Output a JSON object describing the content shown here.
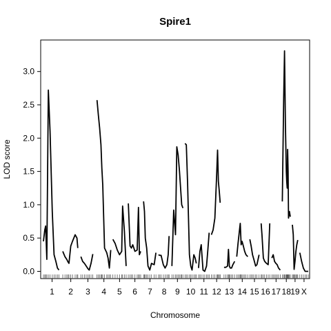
{
  "chart_data": {
    "type": "line",
    "title": "Spire1",
    "xlabel": "Chromosome",
    "ylabel": "LOD score",
    "ylim": [
      -0.1,
      3.45
    ],
    "yticks": [
      0.0,
      0.5,
      1.0,
      1.5,
      2.0,
      2.5,
      3.0
    ],
    "ytick_labels": [
      "0.0",
      "0.5",
      "1.0",
      "1.5",
      "2.0",
      "2.5",
      "3.0"
    ],
    "chromosomes": [
      {
        "label": "1",
        "length": 195
      },
      {
        "label": "2",
        "length": 181
      },
      {
        "label": "3",
        "length": 159
      },
      {
        "label": "4",
        "length": 156
      },
      {
        "label": "5",
        "length": 151
      },
      {
        "label": "6",
        "length": 149
      },
      {
        "label": "7",
        "length": 145
      },
      {
        "label": "8",
        "length": 129
      },
      {
        "label": "9",
        "length": 124
      },
      {
        "label": "10",
        "length": 130
      },
      {
        "label": "11",
        "length": 121
      },
      {
        "label": "12",
        "length": 120
      },
      {
        "label": "13",
        "length": 120
      },
      {
        "label": "14",
        "length": 125
      },
      {
        "label": "15",
        "length": 104
      },
      {
        "label": "16",
        "length": 98
      },
      {
        "label": "17",
        "length": 95
      },
      {
        "label": "18",
        "length": 90
      },
      {
        "label": "19",
        "length": 61
      },
      {
        "label": "X",
        "length": 95
      }
    ],
    "series": [
      {
        "chr": "1",
        "pos": [
          0,
          15,
          25,
          38,
          55,
          75,
          100,
          120,
          140,
          158,
          175
        ],
        "lod": [
          0.45,
          0.62,
          0.68,
          0.18,
          2.72,
          2.1,
          0.9,
          0.25,
          0.15,
          0.05,
          0.02
        ]
      },
      {
        "chr": "2",
        "pos": [
          0,
          25,
          45,
          60,
          70,
          90,
          110,
          140,
          160,
          170
        ],
        "lod": [
          0.3,
          0.22,
          0.18,
          0.14,
          0.12,
          0.38,
          0.45,
          0.55,
          0.5,
          0.35
        ]
      },
      {
        "chr": "3",
        "pos": [
          0,
          20,
          40,
          60,
          80,
          95,
          115,
          135
        ],
        "lod": [
          0.22,
          0.15,
          0.12,
          0.08,
          0.04,
          0.02,
          0.12,
          0.26
        ]
      },
      {
        "chr": "4",
        "pos": [
          0,
          15,
          30,
          45,
          55,
          65,
          85,
          110,
          125,
          140,
          155
        ],
        "lod": [
          2.57,
          2.35,
          2.15,
          1.9,
          1.55,
          1.3,
          0.35,
          0.28,
          0.2,
          0.05,
          0.32
        ]
      },
      {
        "chr": "5",
        "pos": [
          0,
          25,
          50,
          75,
          100,
          110,
          130,
          150
        ],
        "lod": [
          0.48,
          0.42,
          0.32,
          0.25,
          0.3,
          0.98,
          0.6,
          0.08
        ]
      },
      {
        "chr": "6",
        "pos": [
          0,
          20,
          35,
          50,
          75,
          100,
          115,
          125,
          140
        ],
        "lod": [
          1.02,
          0.38,
          0.35,
          0.4,
          0.3,
          0.32,
          0.96,
          0.25,
          0.3
        ]
      },
      {
        "chr": "7",
        "pos": [
          0,
          10,
          20,
          35,
          50,
          70,
          90,
          120,
          140
        ],
        "lod": [
          1.05,
          0.9,
          0.5,
          0.35,
          0.08,
          0.02,
          0.12,
          0.1,
          0.28
        ]
      },
      {
        "chr": "8",
        "pos": [
          0,
          15,
          30,
          55,
          75,
          95,
          110,
          120
        ],
        "lod": [
          0.25,
          0.24,
          0.24,
          0.1,
          0.05,
          0.1,
          0.25,
          0.53
        ]
      },
      {
        "chr": "9",
        "pos": [
          0,
          20,
          40,
          55,
          70,
          85,
          100,
          110,
          124
        ],
        "lod": [
          0.08,
          0.92,
          0.55,
          1.87,
          1.75,
          1.5,
          1.2,
          1.0,
          0.95
        ]
      },
      {
        "chr": "10",
        "pos": [
          0,
          15,
          30,
          50,
          65,
          80,
          100,
          115,
          128
        ],
        "lod": [
          1.92,
          1.9,
          1.3,
          0.25,
          0.08,
          0.02,
          0.25,
          0.2,
          0.12
        ]
      },
      {
        "chr": "11",
        "pos": [
          0,
          15,
          30,
          50,
          70,
          90,
          105,
          120
        ],
        "lod": [
          0.05,
          0.3,
          0.4,
          0.02,
          0.0,
          0.08,
          0.32,
          0.58
        ]
      },
      {
        "chr": "12",
        "pos": [
          0,
          20,
          40,
          60,
          70,
          80,
          90,
          100
        ],
        "lod": [
          0.55,
          0.62,
          0.8,
          1.45,
          1.82,
          1.35,
          1.2,
          1.03
        ]
      },
      {
        "chr": "13",
        "pos": [
          0,
          20,
          40,
          50,
          60,
          70,
          85,
          100,
          120
        ],
        "lod": [
          0.06,
          0.06,
          0.08,
          0.33,
          0.08,
          0.05,
          0.05,
          0.1,
          0.15
        ]
      },
      {
        "chr": "14",
        "pos": [
          0,
          15,
          30,
          40,
          50,
          60,
          75,
          90,
          105,
          125
        ],
        "lod": [
          0.22,
          0.42,
          0.6,
          0.72,
          0.4,
          0.45,
          0.38,
          0.3,
          0.25,
          0.22
        ]
      },
      {
        "chr": "15",
        "pos": [
          0,
          15,
          30,
          45,
          65,
          80,
          104
        ],
        "lod": [
          0.48,
          0.38,
          0.25,
          0.18,
          0.08,
          0.1,
          0.25
        ]
      },
      {
        "chr": "16",
        "pos": [
          0,
          10,
          25,
          40,
          60,
          80,
          98
        ],
        "lod": [
          0.72,
          0.55,
          0.2,
          0.15,
          0.12,
          0.1,
          0.72
        ]
      },
      {
        "chr": "17",
        "pos": [
          0,
          15,
          30,
          45,
          60,
          75,
          95
        ],
        "lod": [
          0.2,
          0.25,
          0.15,
          0.12,
          0.1,
          0.05,
          0.02
        ]
      },
      {
        "chr": "18",
        "pos": [
          0,
          15,
          25,
          35,
          45,
          50,
          55,
          60,
          65,
          70,
          80,
          90
        ],
        "lod": [
          1.05,
          2.6,
          3.31,
          2.2,
          1.5,
          1.35,
          1.25,
          1.83,
          1.5,
          0.8,
          0.9,
          0.82
        ]
      },
      {
        "chr": "19",
        "pos": [
          0,
          10,
          20,
          30,
          40,
          50,
          61
        ],
        "lod": [
          0.7,
          0.55,
          0.03,
          0.15,
          0.3,
          0.4,
          0.47
        ]
      },
      {
        "chr": "X",
        "pos": [
          0,
          20,
          40,
          60,
          75,
          95
        ],
        "lod": [
          0.28,
          0.15,
          0.05,
          0.0,
          0.0,
          0.0
        ]
      }
    ]
  }
}
